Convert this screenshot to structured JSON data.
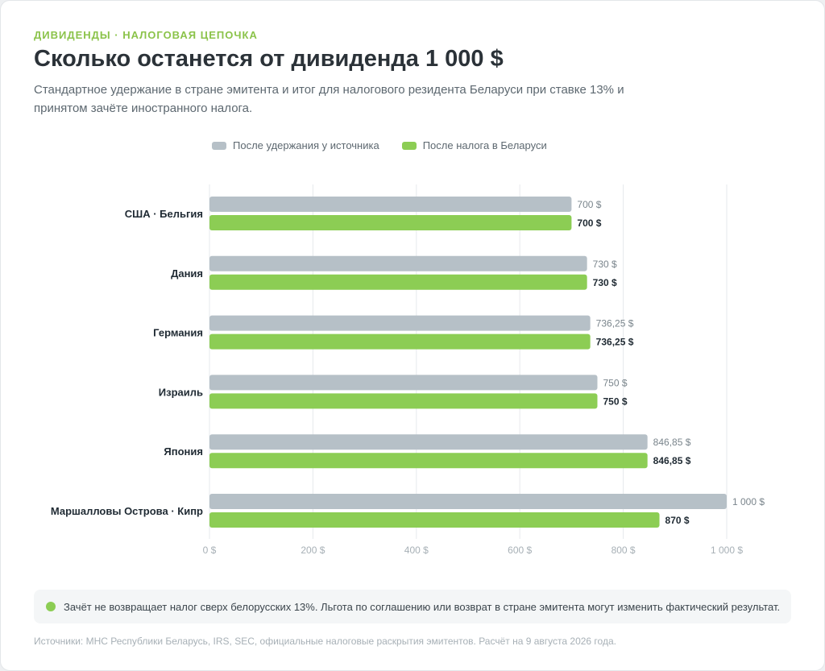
{
  "header": {
    "eyebrow": "ДИВИДЕНДЫ · НАЛОГОВАЯ ЦЕПОЧКА",
    "title": "Сколько останется от дивиденда 1 000 $",
    "subtitle": "Стандартное удержание в стране эмитента и итог для налогового резидента Беларуси при ставке 13% и принятом зачёте иностранного налога."
  },
  "colors": {
    "withheld": "#b6c0c7",
    "after_tax": "#8ccd54",
    "grid": "#e6e9ec",
    "tick_text": "#a7b0b6"
  },
  "chart_data": {
    "type": "bar",
    "orientation": "horizontal",
    "categories": [
      "США · Бельгия",
      "Дания",
      "Германия",
      "Израиль",
      "Япония",
      "Маршалловы Острова · Кипр"
    ],
    "series": [
      {
        "name": "После удержания у источника",
        "values": [
          700,
          730,
          736.25,
          750,
          846.85,
          1000
        ],
        "labels": [
          "700 $",
          "730 $",
          "736,25 $",
          "750 $",
          "846,85 $",
          "1 000 $"
        ]
      },
      {
        "name": "После налога в Беларуси",
        "values": [
          700,
          730,
          736.25,
          750,
          846.85,
          870
        ],
        "labels": [
          "700 $",
          "730 $",
          "736,25 $",
          "750 $",
          "846,85 $",
          "870 $"
        ]
      }
    ],
    "xlim": [
      0,
      1000
    ],
    "xticks": [
      0,
      200,
      400,
      600,
      800,
      1000
    ],
    "xtick_labels": [
      "0 $",
      "200 $",
      "400 $",
      "600 $",
      "800 $",
      "1 000 $"
    ],
    "grid": true,
    "legend_position": "top"
  },
  "note": {
    "text": "Зачёт не возвращает налог сверх белорусских 13%. Льгота по соглашению или возврат в стране эмитента могут изменить фактический результат."
  },
  "footer": {
    "sources": "Источники: МНС Республики Беларусь, IRS, SEC, официальные налоговые раскрытия эмитентов. Расчёт на 9 августа 2026 года."
  }
}
